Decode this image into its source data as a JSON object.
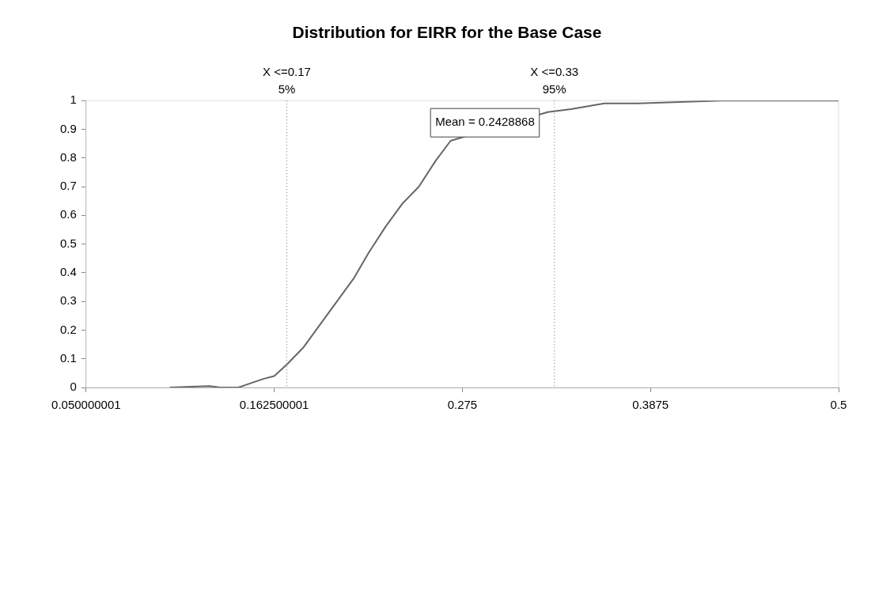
{
  "chart_data": {
    "type": "line",
    "title": "Distribution for EIRR for the Base Case",
    "x": [
      0.1,
      0.124,
      0.13,
      0.141,
      0.146,
      0.156,
      0.1625,
      0.17,
      0.18,
      0.19,
      0.2,
      0.21,
      0.219,
      0.229,
      0.239,
      0.249,
      0.259,
      0.268,
      0.326,
      0.34,
      0.36,
      0.38,
      0.43,
      0.5
    ],
    "series": [
      {
        "color": "#666666",
        "values": [
          0,
          0.005,
          0,
          0,
          0.01,
          0.03,
          0.04,
          0.08,
          0.14,
          0.22,
          0.3,
          0.38,
          0.47,
          0.56,
          0.64,
          0.7,
          0.79,
          0.86,
          0.96,
          0.97,
          0.99,
          0.99,
          1,
          1
        ]
      }
    ],
    "xlim": [
      0.050000001,
      0.5
    ],
    "xticks": [
      0.050000001,
      0.162500001,
      0.275,
      0.3875,
      0.5
    ],
    "ylim": [
      0,
      1
    ],
    "yticks": [
      0,
      0.1,
      0.2,
      0.3,
      0.4,
      0.5,
      0.6,
      0.7,
      0.8,
      0.9,
      1
    ],
    "ref_lines": [
      {
        "axis": "x",
        "value": 0.17,
        "label": "X <=0.17\n5%",
        "color": "#999999",
        "line_style": "dotted"
      },
      {
        "axis": "x",
        "value": 0.33,
        "label": "X <=0.33\n95%",
        "color": "#999999",
        "line_style": "dotted"
      }
    ],
    "annotations": [
      "Mean = 0.2428868"
    ],
    "grid": false,
    "legend": false,
    "marker": "none",
    "line_style": "solid"
  }
}
